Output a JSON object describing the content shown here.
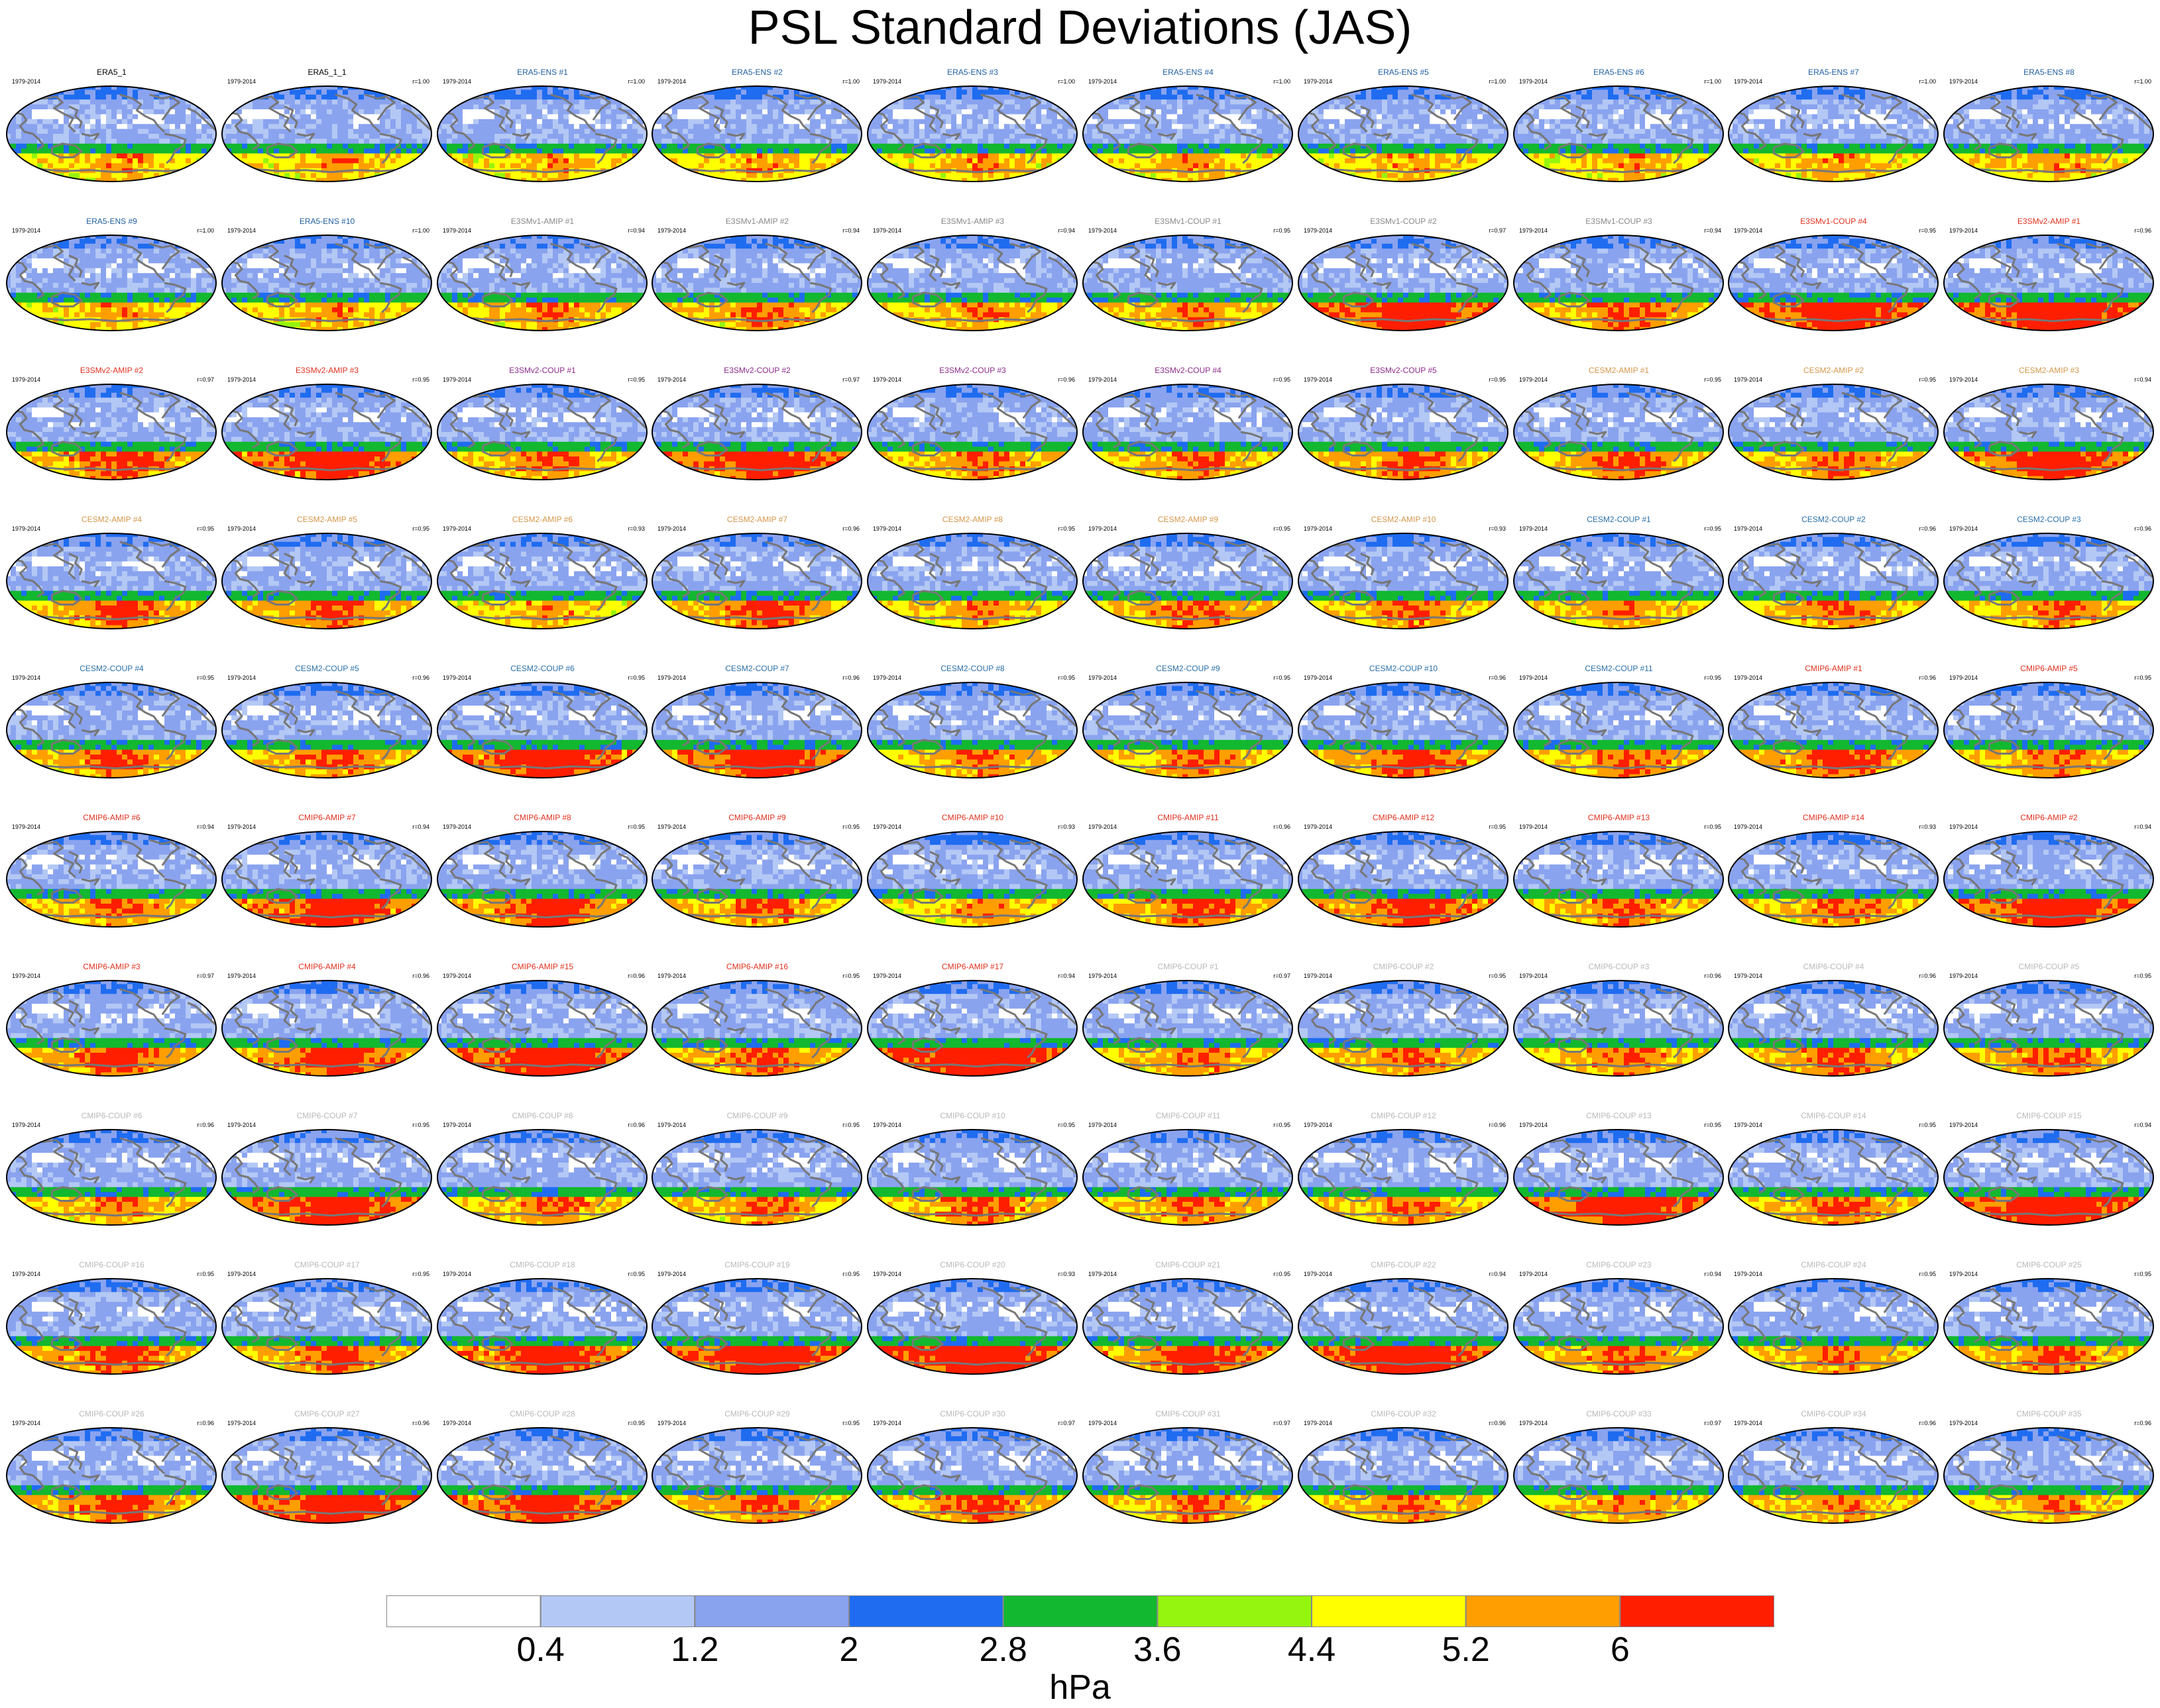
{
  "title": "PSL Standard Deviations (JAS)",
  "colors": {
    "obs": "#000000",
    "era5_ens": "#1f5fa0",
    "e3smv1": "#888888",
    "e3smv2": "#8b2a8b",
    "cesm2_amip": "#d4964a",
    "cesm2_coup": "#2a6fa8",
    "cmip6_amip": "#e0301e",
    "cmip6_coup": "#b8b8b8",
    "coast": "#777777",
    "land_line": "#777777"
  },
  "colorbar": {
    "colors": [
      "#ffffff",
      "#b4c8f5",
      "#8aa3ef",
      "#1f6cf0",
      "#12b82f",
      "#95f50e",
      "#ffff00",
      "#ff9e00",
      "#ff1e00"
    ],
    "labels": [
      "0.4",
      "1.2",
      "2",
      "2.8",
      "3.6",
      "4.4",
      "5.2",
      "6"
    ],
    "units": "hPa"
  },
  "chart_data": {
    "type": "map-grid",
    "title": "PSL Standard Deviations (JAS)",
    "variable": "PSL standard deviation",
    "units": "hPa",
    "season": "JAS",
    "levels": [
      0.4,
      1.2,
      2,
      2.8,
      3.6,
      4.4,
      5.2,
      6
    ],
    "panels": [
      {
        "title": "ERA5_1",
        "period": "1979-2014",
        "corr": "",
        "group": "obs",
        "intensity": 0.45
      },
      {
        "title": "ERA5_1_1",
        "period": "1979-2014",
        "corr": "r=1.00",
        "group": "obs",
        "intensity": 0.45
      },
      {
        "title": "ERA5-ENS  #1",
        "period": "1979-2014",
        "corr": "r=1.00",
        "group": "era5_ens",
        "intensity": 0.45
      },
      {
        "title": "ERA5-ENS  #2",
        "period": "1979-2014",
        "corr": "r=1.00",
        "group": "era5_ens",
        "intensity": 0.45
      },
      {
        "title": "ERA5-ENS  #3",
        "period": "1979-2014",
        "corr": "r=1.00",
        "group": "era5_ens",
        "intensity": 0.45
      },
      {
        "title": "ERA5-ENS  #4",
        "period": "1979-2014",
        "corr": "r=1.00",
        "group": "era5_ens",
        "intensity": 0.45
      },
      {
        "title": "ERA5-ENS  #5",
        "period": "1979-2014",
        "corr": "r=1.00",
        "group": "era5_ens",
        "intensity": 0.45
      },
      {
        "title": "ERA5-ENS  #6",
        "period": "1979-2014",
        "corr": "r=1.00",
        "group": "era5_ens",
        "intensity": 0.45
      },
      {
        "title": "ERA5-ENS  #7",
        "period": "1979-2014",
        "corr": "r=1.00",
        "group": "era5_ens",
        "intensity": 0.45
      },
      {
        "title": "ERA5-ENS  #8",
        "period": "1979-2014",
        "corr": "r=1.00",
        "group": "era5_ens",
        "intensity": 0.45
      },
      {
        "title": "ERA5-ENS  #9",
        "period": "1979-2014",
        "corr": "r=1.00",
        "group": "era5_ens",
        "intensity": 0.45
      },
      {
        "title": "ERA5-ENS  #10",
        "period": "1979-2014",
        "corr": "r=1.00",
        "group": "era5_ens",
        "intensity": 0.45
      },
      {
        "title": "E3SMv1-AMIP #1",
        "period": "1979-2014",
        "corr": "r=0.94",
        "group": "e3smv1",
        "intensity": 0.5
      },
      {
        "title": "E3SMv1-AMIP #2",
        "period": "1979-2014",
        "corr": "r=0.94",
        "group": "e3smv1",
        "intensity": 0.55
      },
      {
        "title": "E3SMv1-AMIP #3",
        "period": "1979-2014",
        "corr": "r=0.94",
        "group": "e3smv1",
        "intensity": 0.5
      },
      {
        "title": "E3SMv1-COUP #1",
        "period": "1979-2014",
        "corr": "r=0.95",
        "group": "e3smv1",
        "intensity": 0.5
      },
      {
        "title": "E3SMv1-COUP #2",
        "period": "1979-2014",
        "corr": "r=0.97",
        "group": "e3smv1",
        "intensity": 0.85
      },
      {
        "title": "E3SMv1-COUP #3",
        "period": "1979-2014",
        "corr": "r=0.94",
        "group": "e3smv1",
        "intensity": 0.6
      },
      {
        "title": "E3SMv1-COUP #4",
        "period": "1979-2014",
        "corr": "r=0.95",
        "group": "cmip6_amip",
        "intensity": 0.85
      },
      {
        "title": "E3SMv2-AMIP #1",
        "period": "1979-2014",
        "corr": "r=0.96",
        "group": "cmip6_amip",
        "intensity": 0.9
      },
      {
        "title": "E3SMv2-AMIP #2",
        "period": "1979-2014",
        "corr": "r=0.97",
        "group": "cmip6_amip",
        "intensity": 0.65
      },
      {
        "title": "E3SMv2-AMIP #3",
        "period": "1979-2014",
        "corr": "r=0.95",
        "group": "cmip6_amip",
        "intensity": 0.8
      },
      {
        "title": "E3SMv2-COUP #1",
        "period": "1979-2014",
        "corr": "r=0.95",
        "group": "e3smv2",
        "intensity": 0.55
      },
      {
        "title": "E3SMv2-COUP #2",
        "period": "1979-2014",
        "corr": "r=0.97",
        "group": "e3smv2",
        "intensity": 0.75
      },
      {
        "title": "E3SMv2-COUP #3",
        "period": "1979-2014",
        "corr": "r=0.96",
        "group": "e3smv2",
        "intensity": 0.55
      },
      {
        "title": "E3SMv2-COUP #4",
        "period": "1979-2014",
        "corr": "r=0.95",
        "group": "e3smv2",
        "intensity": 0.55
      },
      {
        "title": "E3SMv2-COUP #5",
        "period": "1979-2014",
        "corr": "r=0.95",
        "group": "e3smv2",
        "intensity": 0.6
      },
      {
        "title": "CESM2-AMIP #1",
        "period": "1979-2014",
        "corr": "r=0.95",
        "group": "cesm2_amip",
        "intensity": 0.6
      },
      {
        "title": "CESM2-AMIP #2",
        "period": "1979-2014",
        "corr": "r=0.95",
        "group": "cesm2_amip",
        "intensity": 0.55
      },
      {
        "title": "CESM2-AMIP #3",
        "period": "1979-2014",
        "corr": "r=0.94",
        "group": "cesm2_amip",
        "intensity": 0.75
      },
      {
        "title": "CESM2-AMIP #4",
        "period": "1979-2014",
        "corr": "r=0.95",
        "group": "cesm2_amip",
        "intensity": 0.6
      },
      {
        "title": "CESM2-AMIP #5",
        "period": "1979-2014",
        "corr": "r=0.95",
        "group": "cesm2_amip",
        "intensity": 0.6
      },
      {
        "title": "CESM2-AMIP #6",
        "period": "1979-2014",
        "corr": "r=0.93",
        "group": "cesm2_amip",
        "intensity": 0.45
      },
      {
        "title": "CESM2-AMIP #7",
        "period": "1979-2014",
        "corr": "r=0.96",
        "group": "cesm2_amip",
        "intensity": 0.65
      },
      {
        "title": "CESM2-AMIP #8",
        "period": "1979-2014",
        "corr": "r=0.95",
        "group": "cesm2_amip",
        "intensity": 0.5
      },
      {
        "title": "CESM2-AMIP #9",
        "period": "1979-2014",
        "corr": "r=0.95",
        "group": "cesm2_amip",
        "intensity": 0.6
      },
      {
        "title": "CESM2-AMIP #10",
        "period": "1979-2014",
        "corr": "r=0.93",
        "group": "cesm2_amip",
        "intensity": 0.55
      },
      {
        "title": "CESM2-COUP #1",
        "period": "1979-2014",
        "corr": "r=0.95",
        "group": "cesm2_coup",
        "intensity": 0.5
      },
      {
        "title": "CESM2-COUP #2",
        "period": "1979-2014",
        "corr": "r=0.96",
        "group": "cesm2_coup",
        "intensity": 0.55
      },
      {
        "title": "CESM2-COUP #3",
        "period": "1979-2014",
        "corr": "r=0.96",
        "group": "cesm2_coup",
        "intensity": 0.55
      },
      {
        "title": "CESM2-COUP #4",
        "period": "1979-2014",
        "corr": "r=0.95",
        "group": "cesm2_coup",
        "intensity": 0.6
      },
      {
        "title": "CESM2-COUP #5",
        "period": "1979-2014",
        "corr": "r=0.96",
        "group": "cesm2_coup",
        "intensity": 0.55
      },
      {
        "title": "CESM2-COUP #6",
        "period": "1979-2014",
        "corr": "r=0.95",
        "group": "cesm2_coup",
        "intensity": 0.8
      },
      {
        "title": "CESM2-COUP #7",
        "period": "1979-2014",
        "corr": "r=0.96",
        "group": "cesm2_coup",
        "intensity": 0.8
      },
      {
        "title": "CESM2-COUP #8",
        "period": "1979-2014",
        "corr": "r=0.95",
        "group": "cesm2_coup",
        "intensity": 0.55
      },
      {
        "title": "CESM2-COUP #9",
        "period": "1979-2014",
        "corr": "r=0.95",
        "group": "cesm2_coup",
        "intensity": 0.55
      },
      {
        "title": "CESM2-COUP #10",
        "period": "1979-2014",
        "corr": "r=0.96",
        "group": "cesm2_coup",
        "intensity": 0.65
      },
      {
        "title": "CESM2-COUP #11",
        "period": "1979-2014",
        "corr": "r=0.95",
        "group": "cesm2_coup",
        "intensity": 0.6
      },
      {
        "title": "CMIP6-AMIP #1",
        "period": "1979-2014",
        "corr": "r=0.96",
        "group": "cmip6_amip",
        "intensity": 0.65
      },
      {
        "title": "CMIP6-AMIP #5",
        "period": "1979-2014",
        "corr": "r=0.95",
        "group": "cmip6_amip",
        "intensity": 0.55
      },
      {
        "title": "CMIP6-AMIP #6",
        "period": "1979-2014",
        "corr": "r=0.94",
        "group": "cmip6_amip",
        "intensity": 0.55
      },
      {
        "title": "CMIP6-AMIP #7",
        "period": "1979-2014",
        "corr": "r=0.94",
        "group": "cmip6_amip",
        "intensity": 0.75
      },
      {
        "title": "CMIP6-AMIP #8",
        "period": "1979-2014",
        "corr": "r=0.95",
        "group": "cmip6_amip",
        "intensity": 0.7
      },
      {
        "title": "CMIP6-AMIP #9",
        "period": "1979-2014",
        "corr": "r=0.95",
        "group": "cmip6_amip",
        "intensity": 0.55
      },
      {
        "title": "CMIP6-AMIP #10",
        "period": "1979-2014",
        "corr": "r=0.93",
        "group": "cmip6_amip",
        "intensity": 0.45
      },
      {
        "title": "CMIP6-AMIP #11",
        "period": "1979-2014",
        "corr": "r=0.96",
        "group": "cmip6_amip",
        "intensity": 0.6
      },
      {
        "title": "CMIP6-AMIP #12",
        "period": "1979-2014",
        "corr": "r=0.95",
        "group": "cmip6_amip",
        "intensity": 0.7
      },
      {
        "title": "CMIP6-AMIP #13",
        "period": "1979-2014",
        "corr": "r=0.95",
        "group": "cmip6_amip",
        "intensity": 0.6
      },
      {
        "title": "CMIP6-AMIP #14",
        "period": "1979-2014",
        "corr": "r=0.93",
        "group": "cmip6_amip",
        "intensity": 0.55
      },
      {
        "title": "CMIP6-AMIP #2",
        "period": "1979-2014",
        "corr": "r=0.94",
        "group": "cmip6_amip",
        "intensity": 0.85
      },
      {
        "title": "CMIP6-AMIP #3",
        "period": "1979-2014",
        "corr": "r=0.97",
        "group": "cmip6_amip",
        "intensity": 0.65
      },
      {
        "title": "CMIP6-AMIP #4",
        "period": "1979-2014",
        "corr": "r=0.96",
        "group": "cmip6_amip",
        "intensity": 0.7
      },
      {
        "title": "CMIP6-AMIP #15",
        "period": "1979-2014",
        "corr": "r=0.96",
        "group": "cmip6_amip",
        "intensity": 0.9
      },
      {
        "title": "CMIP6-AMIP #16",
        "period": "1979-2014",
        "corr": "r=0.95",
        "group": "cmip6_amip",
        "intensity": 0.6
      },
      {
        "title": "CMIP6-AMIP #17",
        "period": "1979-2014",
        "corr": "r=0.94",
        "group": "cmip6_amip",
        "intensity": 1.0
      },
      {
        "title": "CMIP6-COUP #1",
        "period": "1979-2014",
        "corr": "r=0.97",
        "group": "cmip6_coup",
        "intensity": 0.55
      },
      {
        "title": "CMIP6-COUP #2",
        "period": "1979-2014",
        "corr": "r=0.95",
        "group": "cmip6_coup",
        "intensity": 0.55
      },
      {
        "title": "CMIP6-COUP #3",
        "period": "1979-2014",
        "corr": "r=0.96",
        "group": "cmip6_coup",
        "intensity": 0.55
      },
      {
        "title": "CMIP6-COUP #4",
        "period": "1979-2014",
        "corr": "r=0.96",
        "group": "cmip6_coup",
        "intensity": 0.6
      },
      {
        "title": "CMIP6-COUP #5",
        "period": "1979-2014",
        "corr": "r=0.95",
        "group": "cmip6_coup",
        "intensity": 0.6
      },
      {
        "title": "CMIP6-COUP #6",
        "period": "1979-2014",
        "corr": "r=0.96",
        "group": "cmip6_coup",
        "intensity": 0.5
      },
      {
        "title": "CMIP6-COUP #7",
        "period": "1979-2014",
        "corr": "r=0.95",
        "group": "cmip6_coup",
        "intensity": 0.8
      },
      {
        "title": "CMIP6-COUP #8",
        "period": "1979-2014",
        "corr": "r=0.96",
        "group": "cmip6_coup",
        "intensity": 0.55
      },
      {
        "title": "CMIP6-COUP #9",
        "period": "1979-2014",
        "corr": "r=0.95",
        "group": "cmip6_coup",
        "intensity": 0.55
      },
      {
        "title": "CMIP6-COUP #10",
        "period": "1979-2014",
        "corr": "r=0.95",
        "group": "cmip6_coup",
        "intensity": 0.6
      },
      {
        "title": "CMIP6-COUP #11",
        "period": "1979-2014",
        "corr": "r=0.95",
        "group": "cmip6_coup",
        "intensity": 0.55
      },
      {
        "title": "CMIP6-COUP #12",
        "period": "1979-2014",
        "corr": "r=0.96",
        "group": "cmip6_coup",
        "intensity": 0.55
      },
      {
        "title": "CMIP6-COUP #13",
        "period": "1979-2014",
        "corr": "r=0.95",
        "group": "cmip6_coup",
        "intensity": 0.85
      },
      {
        "title": "CMIP6-COUP #14",
        "period": "1979-2014",
        "corr": "r=0.95",
        "group": "cmip6_coup",
        "intensity": 0.55
      },
      {
        "title": "CMIP6-COUP #15",
        "period": "1979-2014",
        "corr": "r=0.94",
        "group": "cmip6_coup",
        "intensity": 0.9
      },
      {
        "title": "CMIP6-COUP #16",
        "period": "1979-2014",
        "corr": "r=0.95",
        "group": "cmip6_coup",
        "intensity": 0.65
      },
      {
        "title": "CMIP6-COUP #17",
        "period": "1979-2014",
        "corr": "r=0.95",
        "group": "cmip6_coup",
        "intensity": 0.6
      },
      {
        "title": "CMIP6-COUP #18",
        "period": "1979-2014",
        "corr": "r=0.95",
        "group": "cmip6_coup",
        "intensity": 0.75
      },
      {
        "title": "CMIP6-COUP #19",
        "period": "1979-2014",
        "corr": "r=0.95",
        "group": "cmip6_coup",
        "intensity": 0.85
      },
      {
        "title": "CMIP6-COUP #20",
        "period": "1979-2014",
        "corr": "r=0.93",
        "group": "cmip6_coup",
        "intensity": 0.95
      },
      {
        "title": "CMIP6-COUP #21",
        "period": "1979-2014",
        "corr": "r=0.95",
        "group": "cmip6_coup",
        "intensity": 0.7
      },
      {
        "title": "CMIP6-COUP #22",
        "period": "1979-2014",
        "corr": "r=0.94",
        "group": "cmip6_coup",
        "intensity": 0.85
      },
      {
        "title": "CMIP6-COUP #23",
        "period": "1979-2014",
        "corr": "r=0.94",
        "group": "cmip6_coup",
        "intensity": 0.6
      },
      {
        "title": "CMIP6-COUP #24",
        "period": "1979-2014",
        "corr": "r=0.95",
        "group": "cmip6_coup",
        "intensity": 0.55
      },
      {
        "title": "CMIP6-COUP #25",
        "period": "1979-2014",
        "corr": "r=0.95",
        "group": "cmip6_coup",
        "intensity": 0.6
      },
      {
        "title": "CMIP6-COUP #26",
        "period": "1979-2014",
        "corr": "r=0.96",
        "group": "cmip6_coup",
        "intensity": 0.65
      },
      {
        "title": "CMIP6-COUP #27",
        "period": "1979-2014",
        "corr": "r=0.96",
        "group": "cmip6_coup",
        "intensity": 0.85
      },
      {
        "title": "CMIP6-COUP #28",
        "period": "1979-2014",
        "corr": "r=0.95",
        "group": "cmip6_coup",
        "intensity": 0.75
      },
      {
        "title": "CMIP6-COUP #29",
        "period": "1979-2014",
        "corr": "r=0.95",
        "group": "cmip6_coup",
        "intensity": 0.6
      },
      {
        "title": "CMIP6-COUP #30",
        "period": "1979-2014",
        "corr": "r=0.97",
        "group": "cmip6_coup",
        "intensity": 0.6
      },
      {
        "title": "CMIP6-COUP #31",
        "period": "1979-2014",
        "corr": "r=0.97",
        "group": "cmip6_coup",
        "intensity": 0.55
      },
      {
        "title": "CMIP6-COUP #32",
        "period": "1979-2014",
        "corr": "r=0.96",
        "group": "cmip6_coup",
        "intensity": 0.55
      },
      {
        "title": "CMIP6-COUP #33",
        "period": "1979-2014",
        "corr": "r=0.97",
        "group": "cmip6_coup",
        "intensity": 0.5
      },
      {
        "title": "CMIP6-COUP #34",
        "period": "1979-2014",
        "corr": "r=0.96",
        "group": "cmip6_coup",
        "intensity": 0.5
      },
      {
        "title": "CMIP6-COUP #35",
        "period": "1979-2014",
        "corr": "r=0.96",
        "group": "cmip6_coup",
        "intensity": 0.5
      }
    ]
  }
}
